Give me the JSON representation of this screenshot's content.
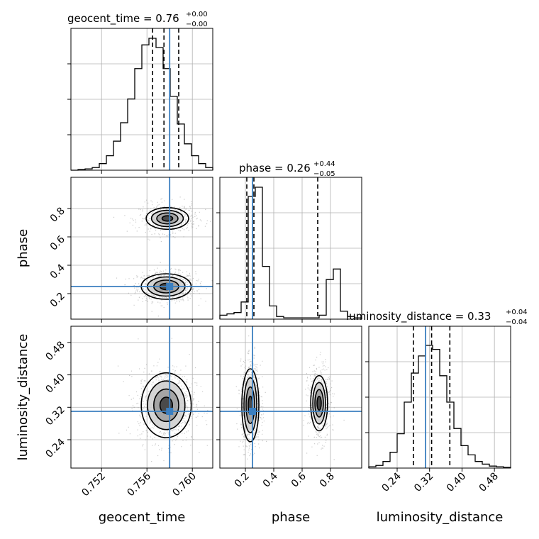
{
  "chart_data": {
    "type": "corner",
    "colors": {
      "truth": "#3b7fc0",
      "hist": "#000000",
      "quantile": "#000000",
      "grid": "#b0b0b0"
    },
    "parameters": [
      {
        "name": "geocent_time",
        "axis_label": "geocent_time",
        "range": [
          0.7493,
          0.7618
        ],
        "ticks": [
          "0.752",
          "0.756",
          "0.760"
        ],
        "tick_values": [
          0.752,
          0.756,
          0.76
        ],
        "truth": 0.758,
        "quantiles": [
          0.7565,
          0.7575,
          0.7588
        ],
        "title": {
          "prefix": "geocent_time = 0.76",
          "plus": "+0.00",
          "minus": "−0.00"
        },
        "hist": [
          0,
          0.005,
          0.01,
          0.02,
          0.05,
          0.11,
          0.22,
          0.36,
          0.54,
          0.77,
          0.95,
          1.0,
          0.93,
          0.77,
          0.56,
          0.35,
          0.2,
          0.11,
          0.05,
          0.02
        ]
      },
      {
        "name": "phase",
        "axis_label": "phase",
        "range": [
          0.02,
          1.02
        ],
        "ticks": [
          "0.2",
          "0.4",
          "0.6",
          "0.8"
        ],
        "tick_values": [
          0.2,
          0.4,
          0.6,
          0.8
        ],
        "truth": 0.25,
        "quantiles": [
          0.21,
          0.26,
          0.71
        ],
        "title": {
          "prefix": "phase = 0.26",
          "plus": "+0.44",
          "minus": "−0.05"
        },
        "hist": [
          0.03,
          0.04,
          0.05,
          0.13,
          0.93,
          1.0,
          0.4,
          0.1,
          0.02,
          0.01,
          0.01,
          0.01,
          0.01,
          0.01,
          0.03,
          0.3,
          0.38,
          0.06,
          0.02,
          0.01
        ]
      },
      {
        "name": "luminosity_distance",
        "axis_label": "luminosity_distance",
        "range": [
          0.17,
          0.52
        ],
        "ticks": [
          "0.24",
          "0.32",
          "0.40",
          "0.48"
        ],
        "tick_values": [
          0.24,
          0.32,
          0.4,
          0.48
        ],
        "truth": 0.31,
        "quantiles": [
          0.28,
          0.325,
          0.37
        ],
        "title": {
          "prefix": "luminosity_distance = 0.33",
          "plus": "+0.04",
          "minus": "−0.04"
        },
        "hist": [
          0.01,
          0.02,
          0.05,
          0.12,
          0.26,
          0.5,
          0.72,
          0.85,
          0.93,
          0.9,
          0.7,
          0.5,
          0.3,
          0.17,
          0.1,
          0.05,
          0.03,
          0.015,
          0.01,
          0.005
        ]
      }
    ],
    "pairs": [
      {
        "x": "geocent_time",
        "y": "phase",
        "modes": [
          {
            "cx": 0.7577,
            "cy": 0.25,
            "sx": 0.0011,
            "sy": 0.045,
            "weight": 1.0
          },
          {
            "cx": 0.7578,
            "cy": 0.73,
            "sx": 0.0011,
            "sy": 0.045,
            "weight": 0.55
          }
        ]
      },
      {
        "x": "geocent_time",
        "y": "luminosity_distance",
        "modes": [
          {
            "cx": 0.7577,
            "cy": 0.325,
            "sx": 0.0011,
            "sy": 0.04,
            "weight": 1.0
          }
        ]
      },
      {
        "x": "phase",
        "y": "luminosity_distance",
        "modes": [
          {
            "cx": 0.235,
            "cy": 0.325,
            "sx": 0.03,
            "sy": 0.045,
            "weight": 1.0
          },
          {
            "cx": 0.72,
            "cy": 0.33,
            "sx": 0.035,
            "sy": 0.04,
            "weight": 0.6
          }
        ]
      }
    ],
    "grid": true
  }
}
